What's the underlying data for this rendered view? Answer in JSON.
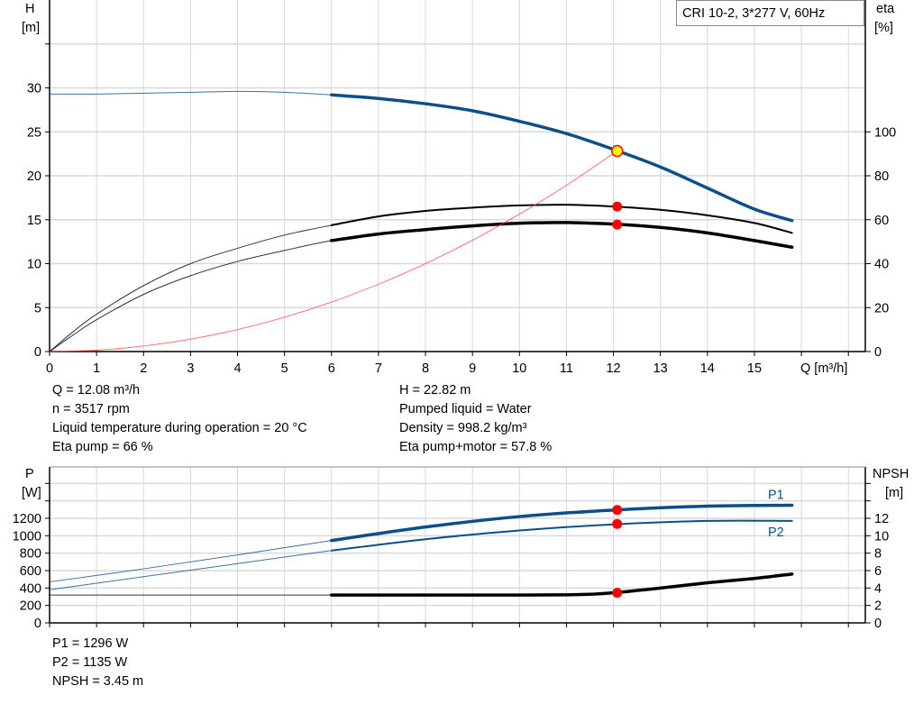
{
  "chart_data": [
    {
      "type": "line",
      "legend_box": "CRI 10-2, 3*277 V, 60Hz",
      "xlabel": "Q [m³/h]",
      "ylabel_left": [
        "H",
        "[m]"
      ],
      "ylabel_right": [
        "eta",
        "[%]"
      ],
      "xlim": [
        0,
        17.3
      ],
      "ylim_left": [
        0,
        40
      ],
      "ylim_right": [
        0,
        160
      ],
      "x_ticks": [
        "0",
        "1",
        "2",
        "3",
        "4",
        "5",
        "6",
        "7",
        "8",
        "9",
        "10",
        "11",
        "12",
        "13",
        "14",
        "15"
      ],
      "y_ticks_left": [
        "0",
        "5",
        "10",
        "15",
        "20",
        "25",
        "30"
      ],
      "y_ticks_right": [
        "0",
        "20",
        "40",
        "60",
        "80",
        "100"
      ],
      "grid": true,
      "series": [
        {
          "id": "H",
          "axis": "left",
          "color": "#0b4f8a",
          "x": [
            0,
            1,
            2,
            3,
            4,
            5,
            6,
            7,
            8,
            9,
            10,
            11,
            12,
            13,
            14,
            15,
            15.8
          ],
          "y": [
            29.3,
            29.3,
            29.4,
            29.5,
            29.6,
            29.5,
            29.2,
            28.8,
            28.2,
            27.4,
            26.2,
            24.8,
            23.0,
            21.0,
            18.6,
            16.2,
            14.9
          ]
        },
        {
          "id": "eta_pump",
          "axis": "right",
          "color": "#000000",
          "x": [
            0,
            0.5,
            1,
            2,
            3,
            4,
            5,
            6,
            7,
            8,
            9,
            10,
            11,
            12,
            13,
            14,
            15,
            15.8
          ],
          "y": [
            0,
            9,
            17,
            30,
            40,
            47,
            53,
            57.5,
            61.5,
            64,
            65.5,
            66.5,
            66.8,
            66,
            64.5,
            62,
            58.5,
            54
          ]
        },
        {
          "id": "eta_total",
          "axis": "right",
          "color": "#000000",
          "x": [
            0,
            0.5,
            1,
            2,
            3,
            4,
            5,
            6,
            7,
            8,
            9,
            10,
            11,
            12,
            13,
            14,
            15,
            15.8
          ],
          "y": [
            0,
            7.5,
            14.5,
            26,
            34.5,
            41,
            46,
            50.5,
            53.5,
            55.5,
            57.2,
            58.4,
            58.7,
            58,
            56.5,
            54,
            50.5,
            47.5
          ]
        },
        {
          "id": "system",
          "axis": "left",
          "color": "#ff4040",
          "x": [
            0,
            1,
            2,
            3,
            4,
            5,
            6,
            7,
            8,
            9,
            10,
            11,
            12.08
          ],
          "y": [
            0,
            0.16,
            0.63,
            1.41,
            2.5,
            3.91,
            5.63,
            7.66,
            10.0,
            12.67,
            15.64,
            18.92,
            22.82
          ]
        }
      ],
      "operating_points": [
        {
          "x": 12.08,
          "y": 22.82,
          "axis": "left",
          "style": "yellow"
        },
        {
          "x": 12.08,
          "y": 66,
          "axis": "right",
          "style": "red"
        },
        {
          "x": 12.08,
          "y": 57.8,
          "axis": "right",
          "style": "red"
        }
      ],
      "thick_from_x": 6
    },
    {
      "type": "line",
      "ylabel_left": [
        "P",
        "[W]"
      ],
      "ylabel_right": [
        "NPSH",
        "[m]"
      ],
      "xlim": [
        0,
        17.3
      ],
      "ylim_left": [
        0,
        1800
      ],
      "ylim_right": [
        0,
        18
      ],
      "y_ticks_left": [
        "0",
        "200",
        "400",
        "600",
        "800",
        "1000",
        "1200"
      ],
      "y_ticks_right": [
        "0",
        "2",
        "4",
        "6",
        "8",
        "10",
        "12"
      ],
      "grid": true,
      "series": [
        {
          "id": "P1",
          "name": "P1",
          "axis": "left",
          "color": "#0b4f8a",
          "x": [
            0,
            2,
            4,
            6,
            8,
            10,
            12,
            14,
            15.8
          ],
          "y": [
            470,
            620,
            780,
            945,
            1100,
            1220,
            1295,
            1340,
            1350
          ]
        },
        {
          "id": "P2",
          "name": "P2",
          "axis": "left",
          "color": "#0b4f8a",
          "x": [
            0,
            2,
            4,
            6,
            8,
            10,
            12,
            14,
            15.8
          ],
          "y": [
            380,
            530,
            680,
            830,
            960,
            1060,
            1130,
            1170,
            1170
          ]
        },
        {
          "id": "NPSH",
          "axis": "right",
          "color": "#000000",
          "x": [
            0,
            6,
            8,
            10,
            11,
            11.5,
            12,
            13,
            14,
            15,
            15.8
          ],
          "y": [
            3.2,
            3.2,
            3.2,
            3.2,
            3.22,
            3.28,
            3.45,
            4.0,
            4.6,
            5.1,
            5.6
          ]
        }
      ],
      "operating_points": [
        {
          "x": 12.08,
          "y": 1296,
          "axis": "left",
          "style": "red"
        },
        {
          "x": 12.08,
          "y": 1135,
          "axis": "left",
          "style": "red"
        },
        {
          "x": 12.08,
          "y": 3.45,
          "axis": "right",
          "style": "red"
        }
      ],
      "thick_from_x": 6
    }
  ],
  "info_top_left": [
    "Q = 12.08 m³/h",
    "n = 3517 rpm",
    "Liquid temperature during operation = 20 °C",
    "Eta pump = 66 %"
  ],
  "info_top_right": [
    "H = 22.82 m",
    "Pumped liquid = Water",
    "Density = 998.2 kg/m³",
    "Eta pump+motor = 57.8 %"
  ],
  "info_bottom": [
    "P1 = 1296 W",
    "P2 = 1135 W",
    "NPSH = 3.45 m"
  ]
}
